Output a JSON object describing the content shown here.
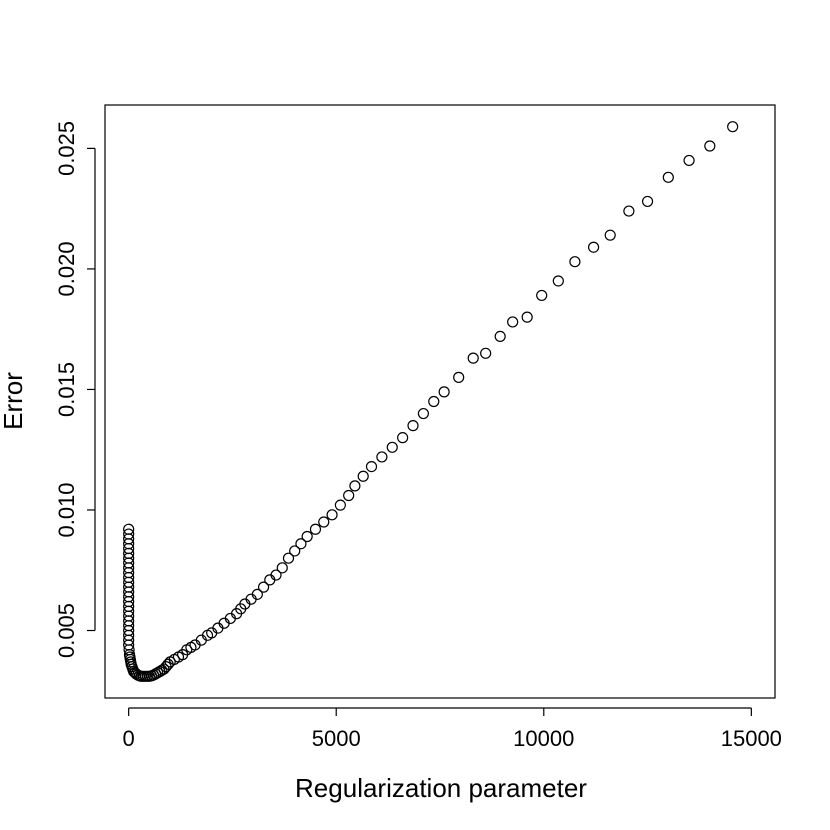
{
  "chart_data": {
    "type": "scatter",
    "title": "",
    "xlabel": "Regularization parameter",
    "ylabel": "Error",
    "xlim": [
      -570,
      15570
    ],
    "ylim": [
      0.0022,
      0.0268
    ],
    "x_ticks": [
      0,
      5000,
      10000,
      15000
    ],
    "x_tick_labels": [
      "0",
      "5000",
      "10000",
      "15000"
    ],
    "y_ticks": [
      0.005,
      0.01,
      0.015,
      0.02,
      0.025
    ],
    "y_tick_labels": [
      "0.005",
      "0.010",
      "0.015",
      "0.020",
      "0.025"
    ],
    "grid": false,
    "legend": "none",
    "marker": "open-circle",
    "color": "#000000",
    "points": [
      [
        0,
        0.0092
      ],
      [
        0,
        0.009
      ],
      [
        0,
        0.0088
      ],
      [
        0,
        0.0086
      ],
      [
        0,
        0.0084
      ],
      [
        0,
        0.0082
      ],
      [
        0,
        0.008
      ],
      [
        0,
        0.0078
      ],
      [
        0,
        0.0076
      ],
      [
        0,
        0.0074
      ],
      [
        0,
        0.0072
      ],
      [
        0,
        0.007
      ],
      [
        0,
        0.0068
      ],
      [
        0,
        0.0066
      ],
      [
        0,
        0.0064
      ],
      [
        0,
        0.0062
      ],
      [
        0,
        0.006
      ],
      [
        0,
        0.0058
      ],
      [
        0,
        0.0056
      ],
      [
        0,
        0.0054
      ],
      [
        0,
        0.0052
      ],
      [
        0,
        0.005
      ],
      [
        0,
        0.0048
      ],
      [
        0,
        0.0046
      ],
      [
        0,
        0.0044
      ],
      [
        10,
        0.0042
      ],
      [
        20,
        0.004
      ],
      [
        30,
        0.0039
      ],
      [
        40,
        0.0038
      ],
      [
        50,
        0.0037
      ],
      [
        60,
        0.0036
      ],
      [
        80,
        0.0035
      ],
      [
        100,
        0.0034
      ],
      [
        120,
        0.0033
      ],
      [
        150,
        0.00325
      ],
      [
        180,
        0.0032
      ],
      [
        220,
        0.00315
      ],
      [
        260,
        0.00312
      ],
      [
        300,
        0.0031
      ],
      [
        350,
        0.0031
      ],
      [
        400,
        0.0031
      ],
      [
        450,
        0.0031
      ],
      [
        500,
        0.0031
      ],
      [
        550,
        0.00312
      ],
      [
        600,
        0.00315
      ],
      [
        650,
        0.0032
      ],
      [
        700,
        0.00325
      ],
      [
        750,
        0.0033
      ],
      [
        800,
        0.00335
      ],
      [
        850,
        0.0034
      ],
      [
        900,
        0.0035
      ],
      [
        950,
        0.0036
      ],
      [
        1000,
        0.0037
      ],
      [
        1100,
        0.0038
      ],
      [
        1200,
        0.0039
      ],
      [
        1300,
        0.004
      ],
      [
        1400,
        0.0042
      ],
      [
        1500,
        0.0043
      ],
      [
        1600,
        0.0044
      ],
      [
        1750,
        0.0046
      ],
      [
        1900,
        0.0048
      ],
      [
        2000,
        0.0049
      ],
      [
        2150,
        0.0051
      ],
      [
        2300,
        0.0053
      ],
      [
        2450,
        0.0055
      ],
      [
        2600,
        0.0057
      ],
      [
        2700,
        0.0059
      ],
      [
        2800,
        0.0061
      ],
      [
        2950,
        0.0063
      ],
      [
        3100,
        0.0065
      ],
      [
        3250,
        0.0068
      ],
      [
        3400,
        0.0071
      ],
      [
        3550,
        0.0073
      ],
      [
        3700,
        0.0076
      ],
      [
        3850,
        0.008
      ],
      [
        4000,
        0.0083
      ],
      [
        4150,
        0.0086
      ],
      [
        4300,
        0.0089
      ],
      [
        4500,
        0.0092
      ],
      [
        4700,
        0.0095
      ],
      [
        4900,
        0.0098
      ],
      [
        5100,
        0.0102
      ],
      [
        5300,
        0.0106
      ],
      [
        5450,
        0.011
      ],
      [
        5650,
        0.0114
      ],
      [
        5850,
        0.0118
      ],
      [
        6100,
        0.0122
      ],
      [
        6350,
        0.0126
      ],
      [
        6600,
        0.013
      ],
      [
        6850,
        0.0135
      ],
      [
        7100,
        0.014
      ],
      [
        7350,
        0.0145
      ],
      [
        7600,
        0.0149
      ],
      [
        7950,
        0.0155
      ],
      [
        8300,
        0.0163
      ],
      [
        8600,
        0.0165
      ],
      [
        8950,
        0.0172
      ],
      [
        9250,
        0.0178
      ],
      [
        9600,
        0.018
      ],
      [
        9950,
        0.0189
      ],
      [
        10350,
        0.0195
      ],
      [
        10750,
        0.0203
      ],
      [
        11200,
        0.0209
      ],
      [
        11600,
        0.0214
      ],
      [
        12050,
        0.0224
      ],
      [
        12500,
        0.0228
      ],
      [
        13000,
        0.0238
      ],
      [
        13500,
        0.0245
      ],
      [
        14000,
        0.0251
      ],
      [
        14550,
        0.0259
      ]
    ]
  }
}
